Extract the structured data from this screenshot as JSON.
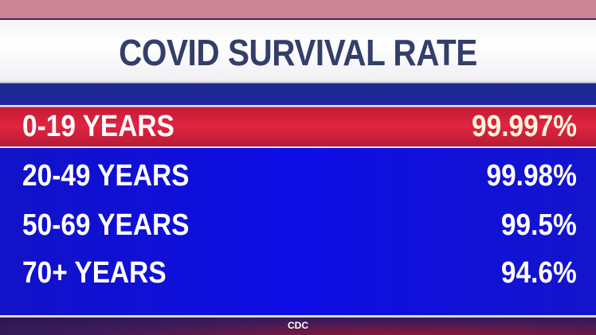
{
  "title": "COVID SURVIVAL RATE",
  "rows": [
    {
      "age": "0-19 YEARS",
      "rate": "99.997%",
      "highlighted": true
    },
    {
      "age": "20-49 YEARS",
      "rate": "99.98%"
    },
    {
      "age": "50-69 YEARS",
      "rate": "99.5%"
    },
    {
      "age": "70+ YEARS",
      "rate": "94.6%"
    }
  ],
  "source": "CDC",
  "colors": {
    "title_text": "#333e6b",
    "highlight": "#e02540",
    "panel": "#0d0de6"
  }
}
